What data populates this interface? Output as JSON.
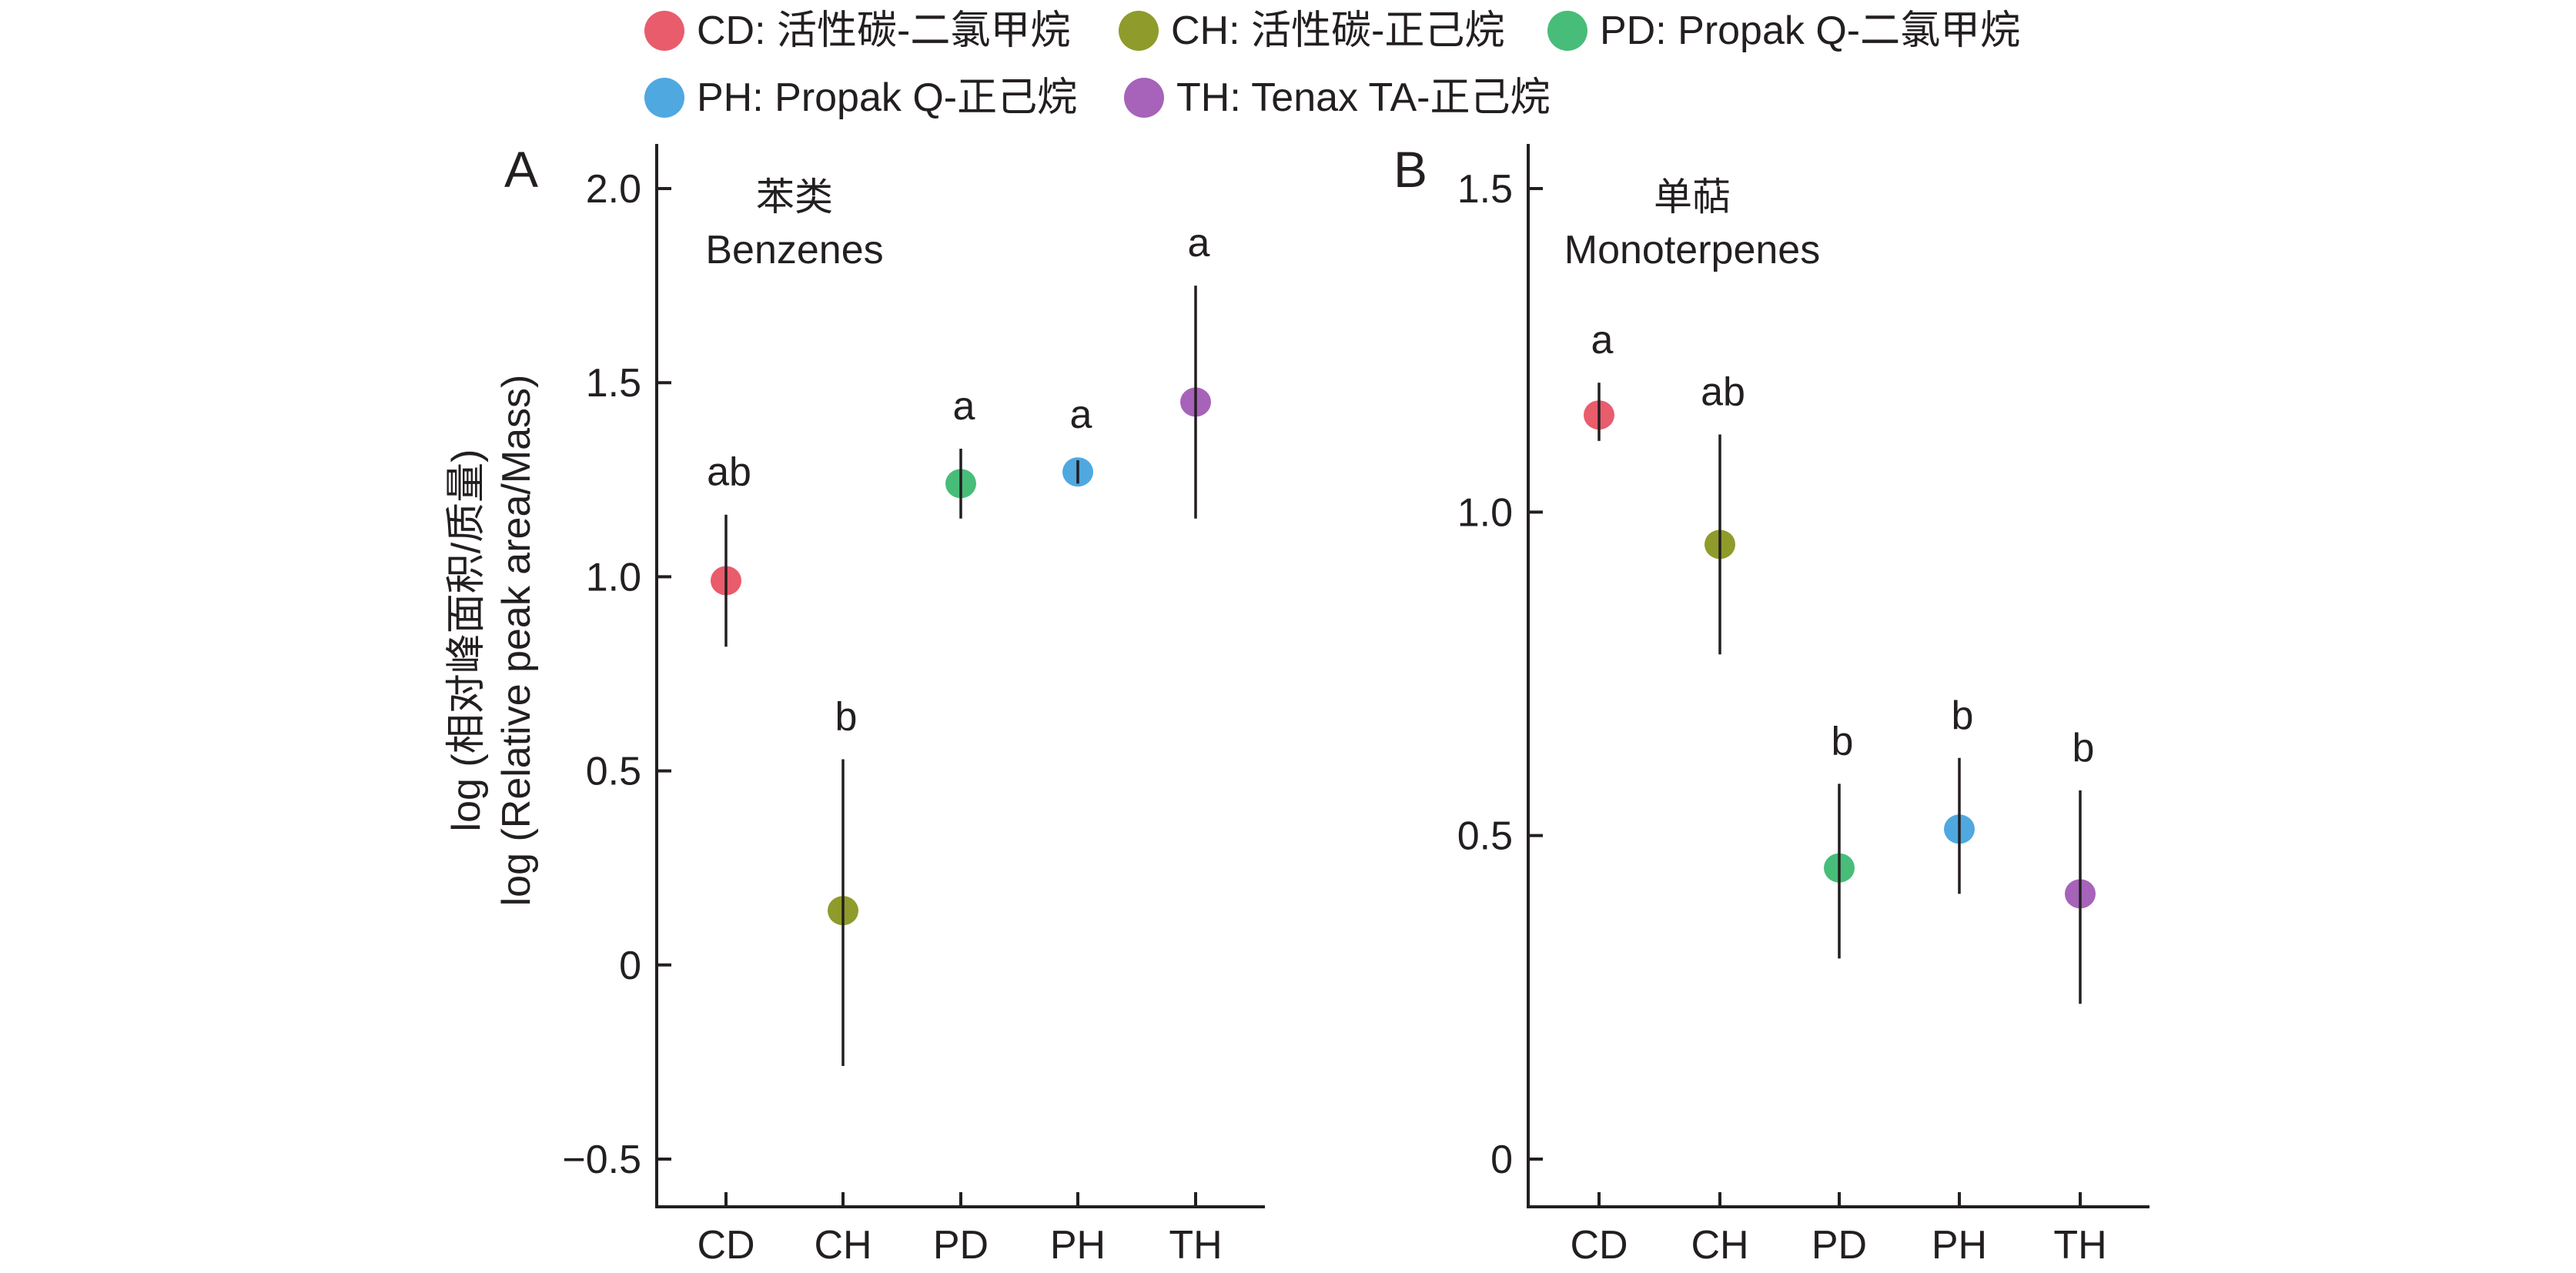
{
  "legend": [
    {
      "code": "CD",
      "label": "CD: 活性碳-二氯甲烷",
      "color": "#E95C6C"
    },
    {
      "code": "CH",
      "label": "CH: 活性碳-正己烷",
      "color": "#8F9B2A"
    },
    {
      "code": "PD",
      "label": "PD: Propak Q-二氯甲烷",
      "color": "#47BD79"
    },
    {
      "code": "PH",
      "label": "PH: Propak Q-正己烷",
      "color": "#4FA8E0"
    },
    {
      "code": "TH",
      "label": "TH: Tenax TA-正己烷",
      "color": "#A663B9"
    }
  ],
  "ylabel": {
    "line1": "log (相对峰面积/质量)",
    "line2": "log (Relative peak area/Mass)"
  },
  "chart_data": [
    {
      "type": "scatter",
      "panel": "A",
      "title_cn": "苯类",
      "title_en": "Benzenes",
      "categories": [
        "CD",
        "CH",
        "PD",
        "PH",
        "TH"
      ],
      "xlabel": "",
      "ylabel": "log (相对峰面积/质量) / log (Relative peak area/Mass)",
      "ylim": [
        -0.62,
        2.1
      ],
      "yticks": [
        -0.5,
        0,
        0.5,
        1.0,
        1.5,
        2.0
      ],
      "ytick_labels": [
        "−0.5",
        "0",
        "0.5",
        "1.0",
        "1.5",
        "2.0"
      ],
      "grid": false,
      "legend_position": "top",
      "points": [
        {
          "category": "CD",
          "value": 0.99,
          "err_low": 0.82,
          "err_high": 1.16,
          "letter": "ab"
        },
        {
          "category": "CH",
          "value": 0.14,
          "err_low": -0.26,
          "err_high": 0.53,
          "letter": "b"
        },
        {
          "category": "PD",
          "value": 1.24,
          "err_low": 1.15,
          "err_high": 1.33,
          "letter": "a"
        },
        {
          "category": "PH",
          "value": 1.27,
          "err_low": 1.24,
          "err_high": 1.3,
          "letter": "a"
        },
        {
          "category": "TH",
          "value": 1.45,
          "err_low": 1.15,
          "err_high": 1.75,
          "letter": "a"
        }
      ]
    },
    {
      "type": "scatter",
      "panel": "B",
      "title_cn": "单萜",
      "title_en": "Monoterpenes",
      "categories": [
        "CD",
        "CH",
        "PD",
        "PH",
        "TH"
      ],
      "xlabel": "",
      "ylabel": "",
      "ylim": [
        -0.07,
        1.57
      ],
      "yticks": [
        0,
        0.5,
        1.0,
        1.5
      ],
      "ytick_labels": [
        "0",
        "0.5",
        "1.0",
        "1.5"
      ],
      "grid": false,
      "legend_position": "top",
      "points": [
        {
          "category": "CD",
          "value": 1.15,
          "err_low": 1.11,
          "err_high": 1.2,
          "letter": "a"
        },
        {
          "category": "CH",
          "value": 0.95,
          "err_low": 0.78,
          "err_high": 1.12,
          "letter": "ab"
        },
        {
          "category": "PD",
          "value": 0.45,
          "err_low": 0.31,
          "err_high": 0.58,
          "letter": "b"
        },
        {
          "category": "PH",
          "value": 0.51,
          "err_low": 0.41,
          "err_high": 0.62,
          "letter": "b"
        },
        {
          "category": "TH",
          "value": 0.41,
          "err_low": 0.24,
          "err_high": 0.57,
          "letter": "b"
        }
      ]
    }
  ]
}
